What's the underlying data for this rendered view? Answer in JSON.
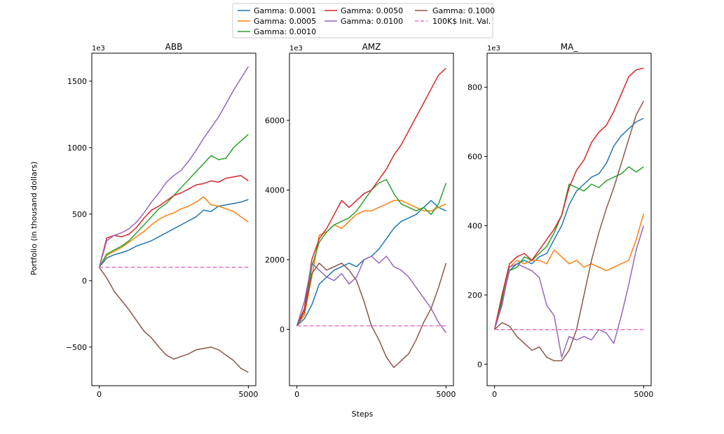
{
  "figure": {
    "ylabel": "Portfolio (in thousand dollars)",
    "xlabel": "Steps",
    "scale_label": "1e3"
  },
  "legend": [
    {
      "label": "Gamma: 0.0001",
      "color": "#1f77b4",
      "dash": false
    },
    {
      "label": "Gamma: 0.0005",
      "color": "#ff7f0e",
      "dash": false
    },
    {
      "label": "Gamma: 0.0010",
      "color": "#2ca02c",
      "dash": false
    },
    {
      "label": "Gamma: 0.0050",
      "color": "#d62728",
      "dash": false
    },
    {
      "label": "Gamma: 0.0100",
      "color": "#9467bd",
      "dash": false
    },
    {
      "label": "Gamma: 0.1000",
      "color": "#8c564b",
      "dash": false
    },
    {
      "label": "100K$ Init. Val.",
      "color": "#e377c2",
      "dash": true
    }
  ],
  "chart_data": [
    {
      "type": "line",
      "title": "ABB",
      "xlabel": "Steps",
      "ylabel": "Portfolio (in thousand dollars)",
      "xlim": [
        -250,
        5250
      ],
      "ylim": [
        -790,
        1710
      ],
      "xticks": [
        0,
        5000
      ],
      "yticks": [
        -500,
        0,
        500,
        1000,
        1500
      ],
      "x": [
        0,
        250,
        500,
        750,
        1000,
        1250,
        1500,
        1750,
        2000,
        2250,
        2500,
        2750,
        3000,
        3250,
        3500,
        3750,
        4000,
        4250,
        4500,
        4750,
        5000
      ],
      "series": [
        {
          "name": "Gamma: 0.0001",
          "values": [
            100,
            170,
            195,
            210,
            230,
            260,
            280,
            300,
            330,
            360,
            390,
            420,
            450,
            480,
            530,
            520,
            560,
            570,
            580,
            590,
            610
          ]
        },
        {
          "name": "Gamma: 0.0005",
          "values": [
            100,
            190,
            220,
            250,
            290,
            330,
            370,
            420,
            460,
            490,
            510,
            540,
            560,
            590,
            630,
            570,
            560,
            540,
            520,
            480,
            440
          ]
        },
        {
          "name": "Gamma: 0.0010",
          "values": [
            100,
            200,
            230,
            260,
            300,
            360,
            420,
            480,
            540,
            580,
            640,
            700,
            760,
            820,
            880,
            940,
            910,
            920,
            1000,
            1050,
            1100
          ]
        },
        {
          "name": "Gamma: 0.0050",
          "values": [
            100,
            320,
            340,
            330,
            350,
            400,
            470,
            530,
            560,
            600,
            640,
            660,
            690,
            720,
            730,
            750,
            740,
            770,
            780,
            790,
            750
          ]
        },
        {
          "name": "Gamma: 0.0100",
          "values": [
            100,
            300,
            340,
            360,
            390,
            440,
            510,
            590,
            660,
            740,
            790,
            830,
            900,
            980,
            1070,
            1150,
            1230,
            1330,
            1430,
            1520,
            1610
          ]
        },
        {
          "name": "Gamma: 0.1000",
          "values": [
            100,
            20,
            -80,
            -150,
            -220,
            -300,
            -380,
            -430,
            -500,
            -560,
            -590,
            -570,
            -550,
            -520,
            -510,
            -500,
            -520,
            -560,
            -600,
            -660,
            -690
          ]
        },
        {
          "name": "100K$ Init. Val.",
          "values": [
            100,
            100,
            100,
            100,
            100,
            100,
            100,
            100,
            100,
            100,
            100,
            100,
            100,
            100,
            100,
            100,
            100,
            100,
            100,
            100,
            100
          ]
        }
      ]
    },
    {
      "type": "line",
      "title": "AMZ",
      "xlabel": "Steps",
      "ylabel": "",
      "xlim": [
        -250,
        5250
      ],
      "ylim": [
        -1620,
        7930
      ],
      "xticks": [
        0,
        5000
      ],
      "yticks": [
        0,
        2000,
        4000,
        6000
      ],
      "x": [
        0,
        250,
        500,
        750,
        1000,
        1250,
        1500,
        1750,
        2000,
        2250,
        2500,
        2750,
        3000,
        3250,
        3500,
        3750,
        4000,
        4250,
        4500,
        4750,
        5000
      ],
      "series": [
        {
          "name": "Gamma: 0.0001",
          "values": [
            100,
            300,
            700,
            1300,
            1500,
            1700,
            1800,
            1900,
            1800,
            2000,
            2100,
            2300,
            2600,
            2900,
            3100,
            3200,
            3300,
            3500,
            3700,
            3500,
            3400
          ]
        },
        {
          "name": "Gamma: 0.0005",
          "values": [
            100,
            400,
            1500,
            2700,
            2800,
            3000,
            2900,
            3100,
            3300,
            3400,
            3400,
            3500,
            3600,
            3700,
            3700,
            3600,
            3500,
            3400,
            3400,
            3500,
            3600
          ]
        },
        {
          "name": "Gamma: 0.0010",
          "values": [
            100,
            500,
            1800,
            2500,
            2800,
            3000,
            3100,
            3200,
            3400,
            3700,
            4000,
            4200,
            4300,
            3900,
            3600,
            3500,
            3400,
            3500,
            3300,
            3600,
            4200
          ]
        },
        {
          "name": "Gamma: 0.0050",
          "values": [
            100,
            600,
            2000,
            2600,
            2900,
            3300,
            3700,
            3500,
            3700,
            3900,
            4000,
            4300,
            4600,
            5000,
            5300,
            5700,
            6100,
            6500,
            6900,
            7300,
            7500
          ]
        },
        {
          "name": "Gamma: 0.0100",
          "values": [
            100,
            800,
            1900,
            1700,
            1500,
            1400,
            1600,
            1300,
            1500,
            2000,
            2100,
            1900,
            2100,
            1800,
            1700,
            1500,
            1200,
            900,
            600,
            200,
            -100
          ]
        },
        {
          "name": "Gamma: 0.1000",
          "values": [
            100,
            500,
            1600,
            1900,
            1700,
            1800,
            1900,
            1700,
            1400,
            800,
            100,
            -300,
            -800,
            -1100,
            -900,
            -700,
            -300,
            200,
            600,
            1200,
            1900
          ]
        },
        {
          "name": "100K$ Init. Val.",
          "values": [
            100,
            100,
            100,
            100,
            100,
            100,
            100,
            100,
            100,
            100,
            100,
            100,
            100,
            100,
            100,
            100,
            100,
            100,
            100,
            100,
            100
          ]
        }
      ]
    },
    {
      "type": "line",
      "title": "MA_",
      "xlabel": "Steps",
      "ylabel": "",
      "xlim": [
        -250,
        5250
      ],
      "ylim": [
        -62,
        898
      ],
      "xticks": [
        0,
        5000
      ],
      "yticks": [
        0,
        200,
        400,
        600,
        800
      ],
      "x": [
        0,
        250,
        500,
        750,
        1000,
        1250,
        1500,
        1750,
        2000,
        2250,
        2500,
        2750,
        3000,
        3250,
        3500,
        3750,
        4000,
        4250,
        4500,
        4750,
        5000
      ],
      "series": [
        {
          "name": "Gamma: 0.0001",
          "values": [
            100,
            180,
            270,
            290,
            300,
            290,
            310,
            320,
            360,
            400,
            460,
            500,
            520,
            540,
            550,
            580,
            630,
            660,
            680,
            700,
            710
          ]
        },
        {
          "name": "Gamma: 0.0005",
          "values": [
            100,
            200,
            280,
            300,
            290,
            300,
            300,
            290,
            330,
            310,
            290,
            300,
            280,
            290,
            280,
            270,
            280,
            290,
            300,
            360,
            435
          ]
        },
        {
          "name": "Gamma: 0.0010",
          "values": [
            100,
            190,
            270,
            280,
            310,
            300,
            320,
            340,
            380,
            430,
            520,
            510,
            500,
            520,
            510,
            530,
            540,
            550,
            570,
            555,
            570
          ]
        },
        {
          "name": "Gamma: 0.0050",
          "values": [
            100,
            200,
            290,
            310,
            320,
            300,
            330,
            360,
            390,
            430,
            510,
            560,
            590,
            640,
            670,
            690,
            730,
            780,
            830,
            850,
            855
          ]
        },
        {
          "name": "Gamma: 0.0100",
          "values": [
            100,
            170,
            280,
            290,
            280,
            270,
            250,
            170,
            140,
            20,
            80,
            70,
            80,
            70,
            100,
            90,
            60,
            140,
            230,
            330,
            400
          ]
        },
        {
          "name": "Gamma: 0.1000",
          "values": [
            100,
            120,
            110,
            80,
            60,
            40,
            50,
            20,
            10,
            10,
            40,
            100,
            200,
            300,
            380,
            450,
            510,
            580,
            650,
            720,
            760
          ]
        },
        {
          "name": "100K$ Init. Val.",
          "values": [
            100,
            100,
            100,
            100,
            100,
            100,
            100,
            100,
            100,
            100,
            100,
            100,
            100,
            100,
            100,
            100,
            100,
            100,
            100,
            100,
            100
          ]
        }
      ]
    }
  ]
}
